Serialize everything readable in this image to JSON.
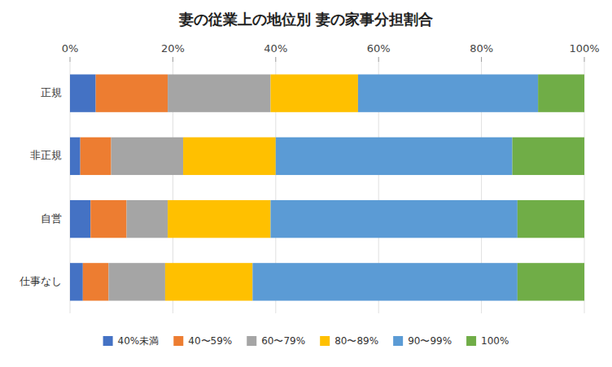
{
  "chart_data": {
    "type": "bar",
    "orientation": "horizontal",
    "stacked": true,
    "title": "妻の従業上の地位別 妻の家事分担割合",
    "categories": [
      "正規",
      "非正規",
      "自営",
      "仕事なし"
    ],
    "series": [
      {
        "name": "40%未満",
        "color": "#4472C4",
        "values": [
          5.0,
          2.0,
          4.0,
          2.5
        ]
      },
      {
        "name": "40〜59%",
        "color": "#ED7D31",
        "values": [
          14.0,
          6.0,
          7.0,
          5.0
        ]
      },
      {
        "name": "60〜79%",
        "color": "#A5A5A5",
        "values": [
          20.0,
          14.0,
          8.0,
          11.0
        ]
      },
      {
        "name": "80〜89%",
        "color": "#FFC000",
        "values": [
          17.0,
          18.0,
          20.0,
          17.0
        ]
      },
      {
        "name": "90〜99%",
        "color": "#5B9BD5",
        "values": [
          35.0,
          46.0,
          48.0,
          51.5
        ]
      },
      {
        "name": "100%",
        "color": "#70AD47",
        "values": [
          9.0,
          14.0,
          13.0,
          13.0
        ]
      }
    ],
    "xlim": [
      0,
      100
    ],
    "xticks": [
      {
        "value": 0,
        "label": "0%"
      },
      {
        "value": 20,
        "label": "20%"
      },
      {
        "value": 40,
        "label": "40%"
      },
      {
        "value": 60,
        "label": "60%"
      },
      {
        "value": 80,
        "label": "80%"
      },
      {
        "value": 100,
        "label": "100%"
      }
    ],
    "grid": true,
    "legend": "bottom"
  }
}
